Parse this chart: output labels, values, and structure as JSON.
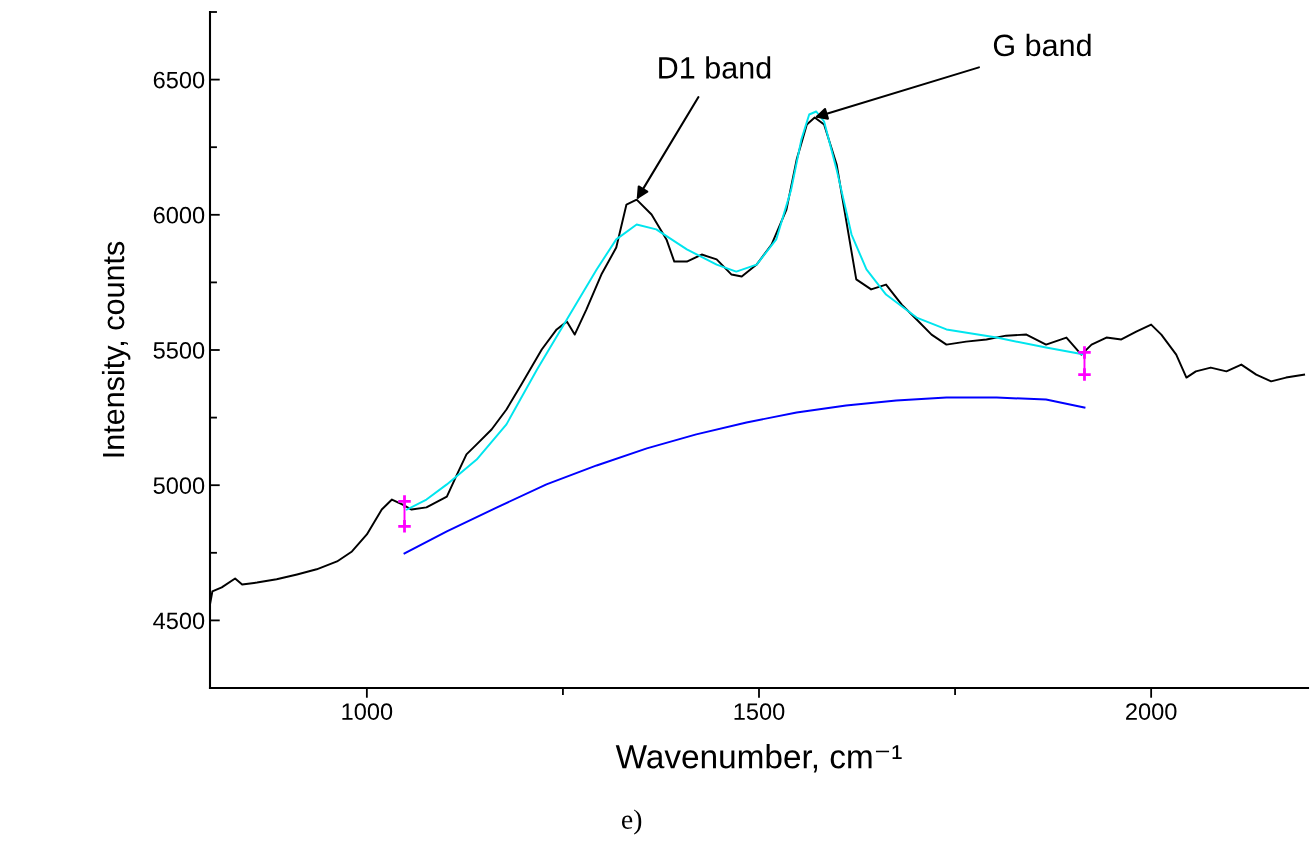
{
  "chart_data": {
    "type": "line",
    "xlabel": "Wavenumber, cm⁻¹",
    "ylabel": "Intensity, counts",
    "xlim": [
      800,
      2200
    ],
    "xticks": [
      1000,
      1500,
      2000
    ],
    "ylim": [
      4250,
      6750
    ],
    "yticks": [
      4500,
      5000,
      5500,
      6000,
      6500
    ],
    "grid": false,
    "legend": false,
    "marker": "none",
    "line_style": "solid",
    "series": [
      {
        "color": "#000000",
        "x": [
          800,
          803,
          815,
          832,
          841,
          860,
          885,
          911,
          936,
          962,
          981,
          1000,
          1019,
          1032,
          1045,
          1057,
          1076,
          1102,
          1115,
          1127,
          1140,
          1159,
          1178,
          1197,
          1223,
          1242,
          1255,
          1265,
          1280,
          1299,
          1318,
          1331,
          1344,
          1363,
          1382,
          1392,
          1408,
          1427,
          1446,
          1465,
          1478,
          1497,
          1516,
          1535,
          1548,
          1561,
          1571,
          1583,
          1599,
          1611,
          1624,
          1643,
          1662,
          1682,
          1701,
          1720,
          1739,
          1764,
          1790,
          1815,
          1841,
          1866,
          1892,
          1911,
          1924,
          1943,
          1962,
          1981,
          2000,
          2013,
          2032,
          2045,
          2057,
          2076,
          2096,
          2115,
          2134,
          2153,
          2172,
          2195
        ],
        "values": [
          4559,
          4607,
          4622,
          4655,
          4633,
          4640,
          4652,
          4670,
          4689,
          4718,
          4755,
          4818,
          4910,
          4947,
          4929,
          4910,
          4918,
          4958,
          5040,
          5114,
          5151,
          5206,
          5280,
          5372,
          5502,
          5576,
          5605,
          5557,
          5650,
          5779,
          5879,
          6038,
          6056,
          6001,
          5909,
          5827,
          5827,
          5853,
          5835,
          5779,
          5772,
          5816,
          5890,
          6019,
          6204,
          6334,
          6360,
          6334,
          6186,
          5982,
          5761,
          5724,
          5742,
          5668,
          5613,
          5557,
          5520,
          5531,
          5539,
          5553,
          5557,
          5520,
          5546,
          5483,
          5520,
          5546,
          5539,
          5568,
          5594,
          5557,
          5483,
          5398,
          5421,
          5435,
          5421,
          5446,
          5409,
          5384,
          5398,
          5409
        ]
      },
      {
        "color": "#00e5ee",
        "x": [
          1051,
          1076,
          1102,
          1140,
          1178,
          1217,
          1255,
          1293,
          1318,
          1344,
          1369,
          1408,
          1446,
          1471,
          1497,
          1522,
          1541,
          1554,
          1564,
          1573,
          1583,
          1599,
          1618,
          1637,
          1662,
          1701,
          1739,
          1803,
          1866,
          1915
        ],
        "values": [
          4910,
          4947,
          5003,
          5095,
          5225,
          5428,
          5613,
          5798,
          5909,
          5964,
          5946,
          5872,
          5816,
          5790,
          5816,
          5909,
          6093,
          6278,
          6371,
          6382,
          6345,
          6167,
          5927,
          5798,
          5705,
          5620,
          5576,
          5546,
          5509,
          5483
        ]
      },
      {
        "color": "#0000ff",
        "x": [
          1048,
          1102,
          1166,
          1229,
          1293,
          1357,
          1420,
          1484,
          1548,
          1611,
          1675,
          1739,
          1803,
          1866,
          1915
        ],
        "values": [
          4748,
          4829,
          4918,
          5003,
          5073,
          5136,
          5188,
          5232,
          5269,
          5295,
          5313,
          5324,
          5324,
          5317,
          5287
        ]
      },
      {
        "color": "#ff00ff",
        "marker": "cross",
        "x": [
          1048,
          1048
        ],
        "values": [
          4940,
          4848
        ]
      },
      {
        "color": "#ff00ff",
        "marker": "cross",
        "x": [
          1915,
          1915
        ],
        "values": [
          5491,
          5409
        ]
      }
    ],
    "annotations": [
      {
        "text": "D1 band",
        "x": 1344,
        "y": 6056
      },
      {
        "text": "G band",
        "x": 1571,
        "y": 6360
      },
      "e)"
    ]
  }
}
